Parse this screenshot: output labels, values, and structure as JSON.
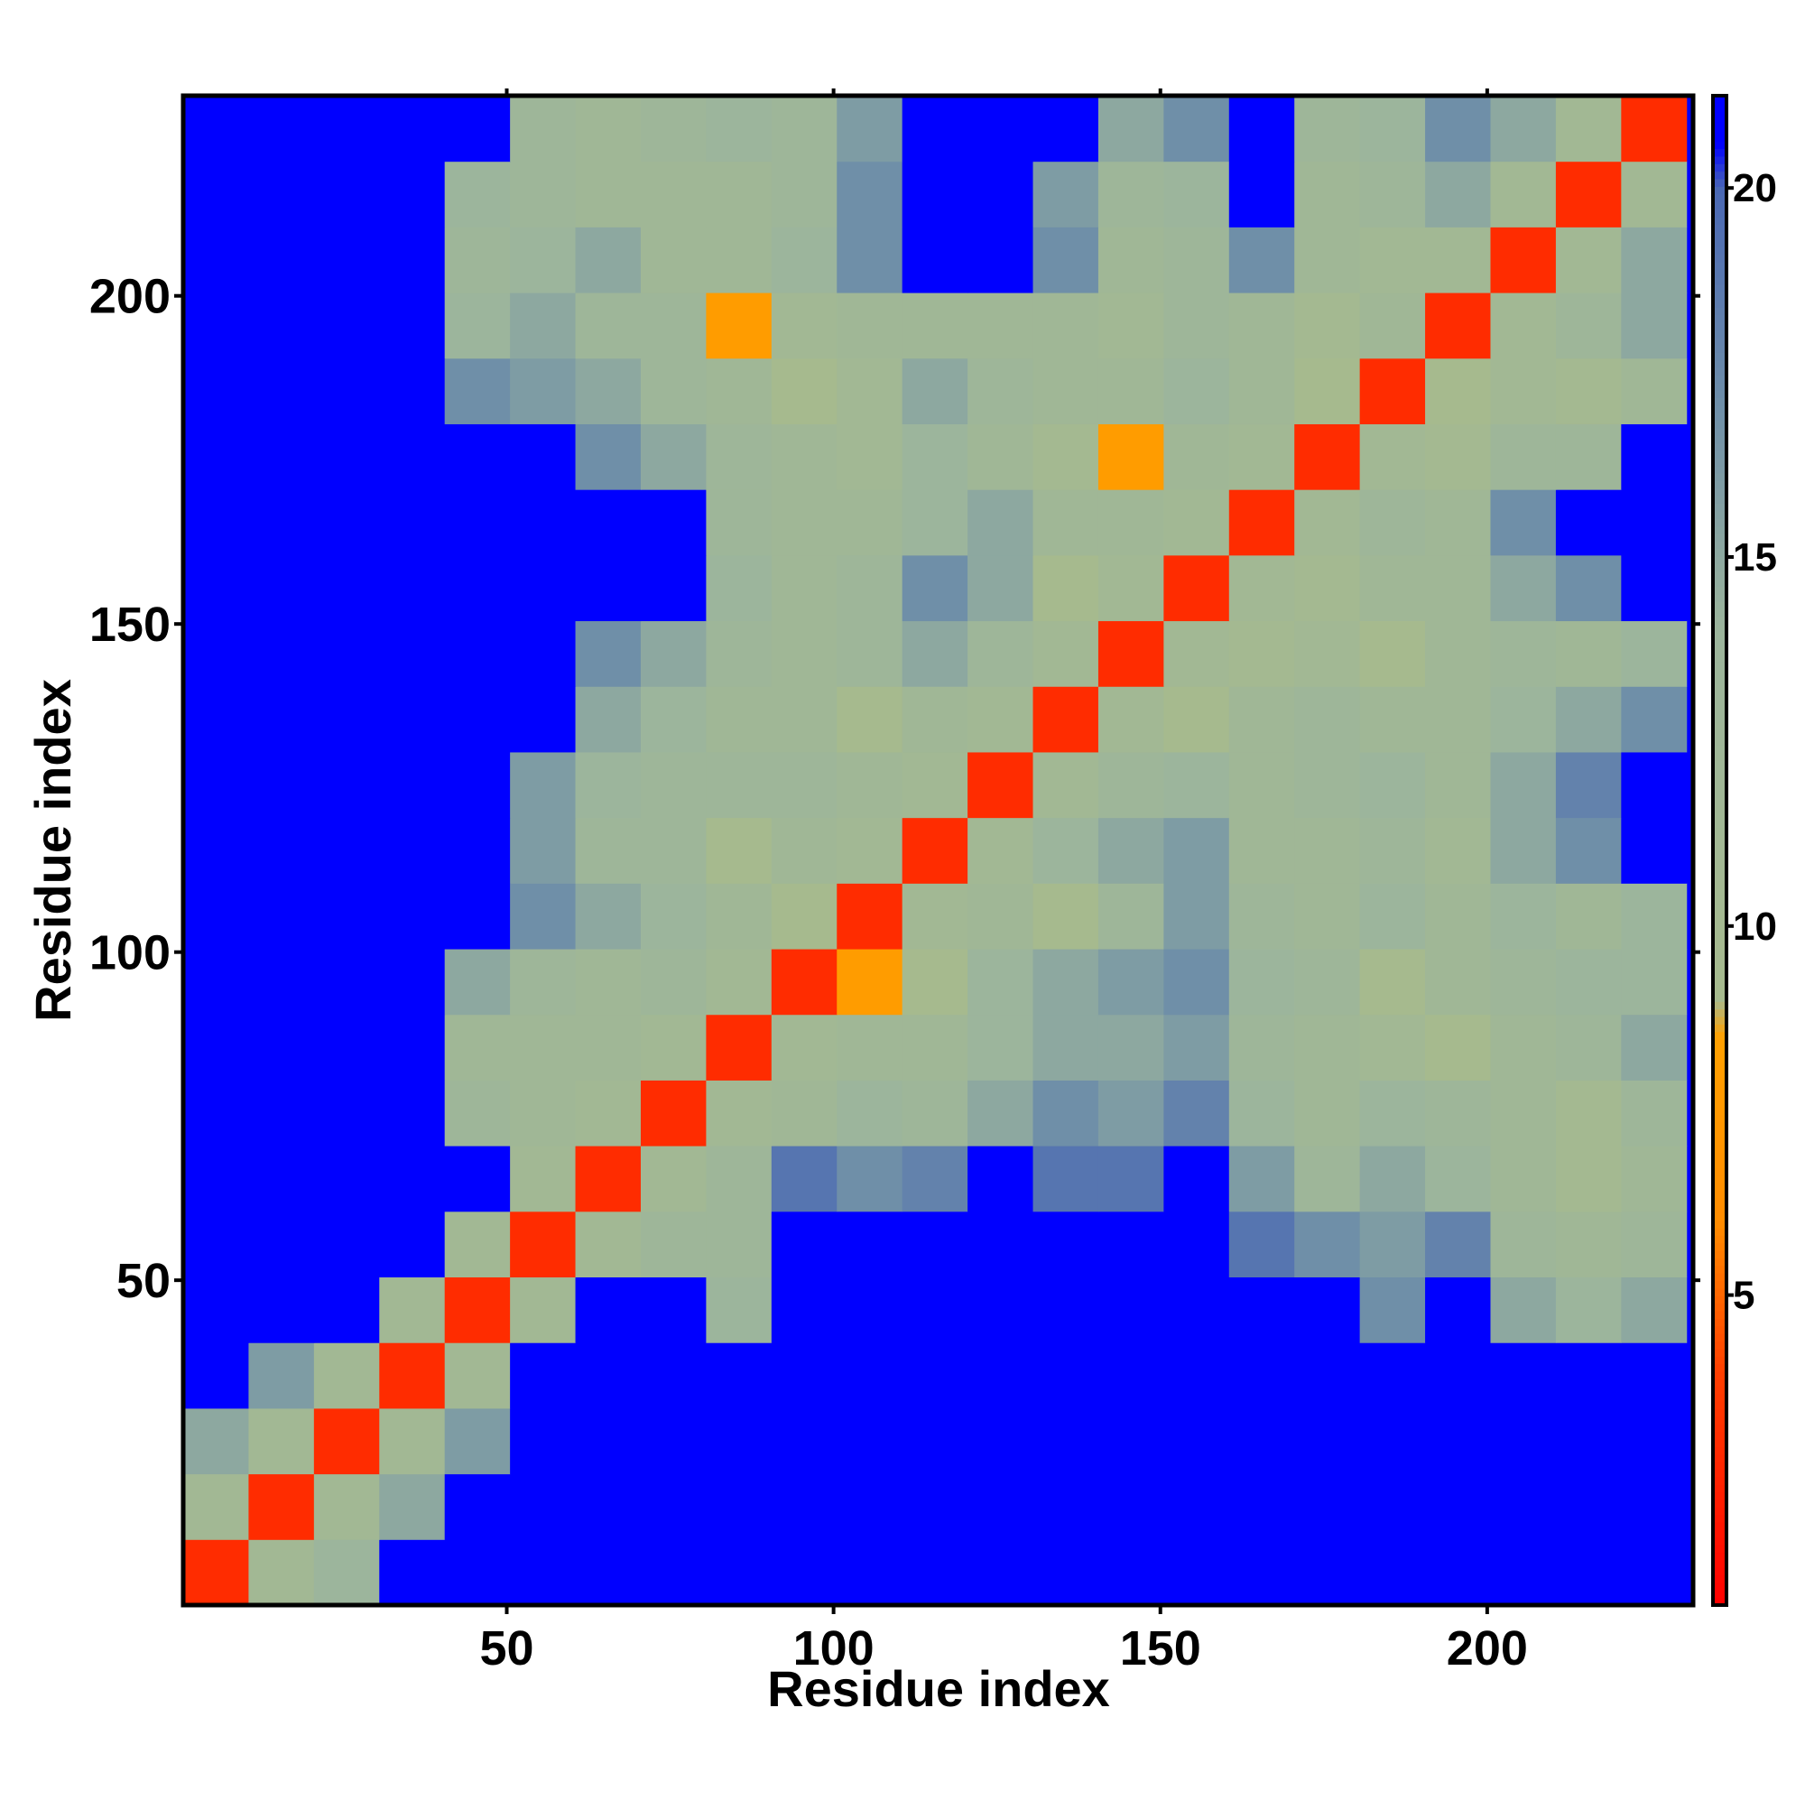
{
  "chart_data": {
    "type": "heatmap",
    "x_label": "Residue index",
    "y_label": "Residue index",
    "xlim": [
      0.5,
      231.5
    ],
    "ylim": [
      0.5,
      230.5
    ],
    "xticks": [
      50,
      100,
      150,
      200
    ],
    "yticks": [
      50,
      100,
      150,
      200
    ],
    "clim": [
      0.8,
      21.25
    ],
    "cticks": [
      5,
      10,
      15,
      20
    ],
    "colorscale": [
      [
        0.8,
        "#ff0000"
      ],
      [
        4,
        "#ff4000"
      ],
      [
        6,
        "#ff8c00"
      ],
      [
        8.5,
        "#ffa000"
      ],
      [
        9,
        "#a6ba8e"
      ],
      [
        14,
        "#9cb59c"
      ],
      [
        17,
        "#6f8fa8"
      ],
      [
        20,
        "#4a68b4"
      ],
      [
        20.6,
        "#0000ff"
      ]
    ],
    "x": [
      5.5,
      15.5,
      25.5,
      35.5,
      45.5,
      55.5,
      65.5,
      75.5,
      85.5,
      95.5,
      105.5,
      115.5,
      125.5,
      135.5,
      145.5,
      155.5,
      165.5,
      175.5,
      185.5,
      195.5,
      205.5,
      215.5,
      225.5
    ],
    "y": [
      5.5,
      15.5,
      25.5,
      35.5,
      45.5,
      55.5,
      65.5,
      75.5,
      85.5,
      95.5,
      105.5,
      115.5,
      125.5,
      135.5,
      145.5,
      155.5,
      165.5,
      175.5,
      185.5,
      195.5,
      205.5,
      215.5,
      225.5
    ],
    "z": [
      [
        3,
        11,
        14,
        21,
        21,
        21,
        21,
        21,
        21,
        21,
        21,
        21,
        21,
        21,
        21,
        21,
        21,
        21,
        21,
        21,
        21,
        21,
        21
      ],
      [
        11,
        3,
        11,
        15,
        21,
        21,
        21,
        21,
        21,
        21,
        21,
        21,
        21,
        21,
        21,
        21,
        21,
        21,
        21,
        21,
        21,
        21,
        21
      ],
      [
        15,
        11,
        3,
        11,
        16,
        21,
        21,
        21,
        21,
        21,
        21,
        21,
        21,
        21,
        21,
        21,
        21,
        21,
        21,
        21,
        21,
        21,
        21
      ],
      [
        21,
        16,
        11,
        3,
        11,
        21,
        21,
        21,
        21,
        21,
        21,
        21,
        21,
        21,
        21,
        21,
        21,
        21,
        21,
        21,
        21,
        21,
        21
      ],
      [
        21,
        21,
        21,
        11,
        3,
        11,
        21,
        21,
        14,
        21,
        21,
        21,
        21,
        21,
        21,
        21,
        21,
        21,
        17,
        21,
        15,
        14,
        15
      ],
      [
        21,
        21,
        21,
        21,
        11,
        3,
        11,
        13,
        13,
        21,
        21,
        21,
        21,
        21,
        21,
        21,
        19,
        17,
        16,
        18,
        13,
        12,
        13
      ],
      [
        21,
        21,
        21,
        21,
        21,
        11,
        3,
        11,
        13,
        19,
        17,
        18,
        21,
        19,
        19,
        21,
        16,
        13,
        15,
        14,
        12,
        10,
        12
      ],
      [
        21,
        21,
        21,
        21,
        13,
        12,
        11,
        3,
        11,
        12,
        14,
        13,
        15,
        17,
        16,
        18,
        14,
        12,
        14,
        13,
        12,
        10,
        13
      ],
      [
        21,
        21,
        21,
        21,
        12,
        12,
        12,
        11,
        3,
        11,
        12,
        12,
        14,
        15,
        15,
        16,
        13,
        12,
        11,
        9,
        12,
        13,
        15
      ],
      [
        21,
        21,
        21,
        21,
        15,
        13,
        12,
        13,
        11,
        3,
        8,
        9,
        14,
        15,
        16,
        17,
        14,
        13,
        9,
        12,
        13,
        14,
        14
      ],
      [
        21,
        21,
        21,
        21,
        21,
        17,
        15,
        14,
        12,
        9,
        3,
        11,
        12,
        9,
        13,
        16,
        13,
        12,
        14,
        12,
        14,
        12,
        14
      ],
      [
        21,
        21,
        21,
        21,
        21,
        16,
        13,
        13,
        9,
        12,
        11,
        3,
        11,
        14,
        15,
        16,
        12,
        12,
        13,
        11,
        15,
        17,
        21
      ],
      [
        21,
        21,
        21,
        21,
        21,
        16,
        14,
        13,
        13,
        13,
        12,
        11,
        3,
        11,
        13,
        14,
        12,
        13,
        14,
        12,
        15,
        18,
        21
      ],
      [
        21,
        21,
        21,
        21,
        21,
        21,
        15,
        14,
        12,
        12,
        9,
        12,
        11,
        3,
        11,
        9,
        12,
        13,
        12,
        12,
        14,
        15,
        17
      ],
      [
        21,
        21,
        21,
        21,
        21,
        21,
        17,
        15,
        13,
        12,
        13,
        15,
        13,
        11,
        3,
        11,
        10,
        11,
        9,
        12,
        13,
        12,
        14
      ],
      [
        21,
        21,
        21,
        21,
        21,
        21,
        21,
        21,
        14,
        12,
        13,
        17,
        15,
        9,
        11,
        3,
        11,
        10,
        12,
        12,
        15,
        17,
        21
      ],
      [
        21,
        21,
        21,
        21,
        21,
        21,
        21,
        21,
        13,
        12,
        12,
        14,
        15,
        12,
        12,
        11,
        3,
        11,
        13,
        12,
        17,
        21,
        21
      ],
      [
        21,
        21,
        21,
        21,
        21,
        21,
        17,
        15,
        13,
        12,
        11,
        14,
        12,
        10,
        8,
        12,
        11,
        3,
        11,
        10,
        13,
        13,
        21
      ],
      [
        21,
        21,
        21,
        21,
        17,
        16,
        15,
        13,
        12,
        9,
        11,
        15,
        13,
        12,
        12,
        14,
        12,
        9,
        3,
        9,
        11,
        10,
        12
      ],
      [
        21,
        21,
        21,
        21,
        14,
        15,
        13,
        13,
        8,
        11,
        12,
        12,
        12,
        12,
        11,
        13,
        12,
        10,
        12,
        3,
        11,
        13,
        15
      ],
      [
        21,
        21,
        21,
        21,
        13,
        14,
        15,
        12,
        12,
        14,
        17,
        21,
        21,
        17,
        12,
        13,
        17,
        12,
        11,
        11,
        3,
        11,
        15
      ],
      [
        21,
        21,
        21,
        21,
        14,
        13,
        12,
        12,
        12,
        13,
        17,
        21,
        21,
        16,
        13,
        14,
        21,
        12,
        13,
        15,
        11,
        3,
        11
      ],
      [
        21,
        21,
        21,
        21,
        21,
        13,
        12,
        13,
        14,
        13,
        16,
        21,
        21,
        21,
        15,
        17,
        21,
        13,
        14,
        17,
        15,
        11,
        3
      ]
    ]
  }
}
